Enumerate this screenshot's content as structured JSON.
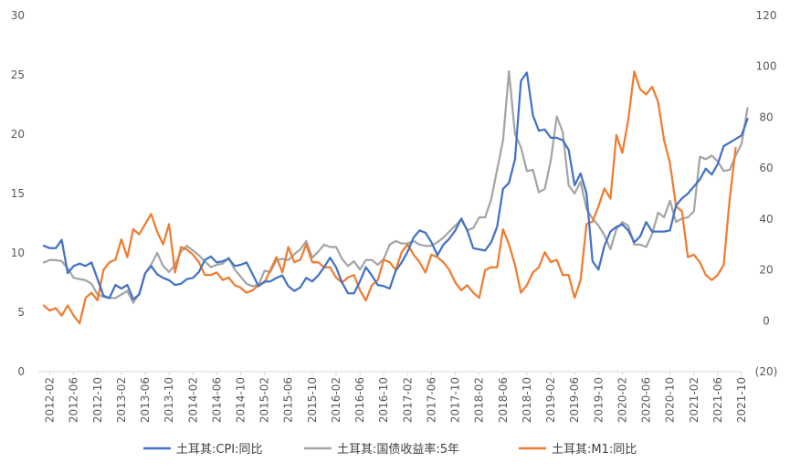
{
  "chart_data": {
    "type": "line",
    "title": "",
    "left_axis": {
      "min": 0,
      "max": 30,
      "step": 5,
      "ticks": [
        "0",
        "5",
        "10",
        "15",
        "20",
        "25",
        "30"
      ]
    },
    "right_axis": {
      "min": -20,
      "max": 120,
      "step": 20,
      "ticks": [
        "(20)",
        "0",
        "20",
        "40",
        "60",
        "80",
        "100",
        "120"
      ],
      "negative_color": "#c00000"
    },
    "x_labels": [
      "2012-02",
      "2012-06",
      "2012-10",
      "2013-02",
      "2013-06",
      "2013-10",
      "2014-02",
      "2014-06",
      "2014-10",
      "2015-02",
      "2015-06",
      "2015-10",
      "2016-02",
      "2016-06",
      "2016-10",
      "2017-02",
      "2017-06",
      "2017-10",
      "2018-02",
      "2018-06",
      "2018-10",
      "2019-02",
      "2019-06",
      "2019-10",
      "2020-02",
      "2020-06",
      "2020-10",
      "2021-02",
      "2021-06",
      "2021-10"
    ],
    "x_start": "2012-01",
    "legend": {
      "position": "bottom"
    },
    "grid": false,
    "series": [
      {
        "name": "土耳其:CPI:同比",
        "axis": "left",
        "color": "#4472c4",
        "values": [
          10.6,
          10.4,
          10.4,
          11.1,
          8.3,
          8.9,
          9.1,
          8.9,
          9.2,
          7.8,
          6.4,
          6.2,
          7.3,
          7.0,
          7.3,
          6.1,
          6.5,
          8.3,
          8.9,
          8.2,
          7.9,
          7.7,
          7.3,
          7.4,
          7.8,
          7.9,
          8.4,
          9.4,
          9.7,
          9.2,
          9.3,
          9.5,
          8.9,
          9.0,
          9.2,
          8.2,
          7.2,
          7.6,
          7.6,
          7.9,
          8.1,
          7.2,
          6.8,
          7.1,
          7.9,
          7.6,
          8.1,
          8.8,
          9.6,
          8.8,
          7.5,
          6.6,
          6.6,
          7.6,
          8.8,
          8.1,
          7.3,
          7.2,
          7.0,
          8.5,
          9.2,
          10.1,
          11.3,
          11.9,
          11.7,
          10.9,
          9.8,
          10.7,
          11.2,
          11.9,
          12.9,
          11.9,
          10.4,
          10.3,
          10.2,
          10.9,
          12.2,
          15.4,
          15.9,
          17.9,
          24.5,
          25.2,
          21.6,
          20.3,
          20.4,
          19.7,
          19.7,
          19.5,
          18.7,
          15.7,
          16.7,
          15.0,
          9.3,
          8.6,
          10.6,
          11.8,
          12.2,
          12.4,
          11.9,
          10.9,
          11.4,
          12.6,
          11.8,
          11.8,
          11.8,
          11.9,
          14.0,
          14.6,
          15.0,
          15.6,
          16.2,
          17.1,
          16.6,
          17.5,
          19.0,
          19.3,
          19.6,
          19.9,
          21.3
        ]
      },
      {
        "name": "土耳其:国债收益率:5年",
        "axis": "left",
        "color": "#a5a5a5",
        "values": [
          9.2,
          9.4,
          9.4,
          9.3,
          8.7,
          7.9,
          7.8,
          7.7,
          7.4,
          6.5,
          6.3,
          6.2,
          6.2,
          6.5,
          6.8,
          5.8,
          6.6,
          8.3,
          9.0,
          10.0,
          8.9,
          8.4,
          9.0,
          10.1,
          10.6,
          10.2,
          9.8,
          9.3,
          8.8,
          9.0,
          9.1,
          9.6,
          8.6,
          8.0,
          7.4,
          7.2,
          7.3,
          8.5,
          8.4,
          9.4,
          9.5,
          9.4,
          9.9,
          10.3,
          11.0,
          9.6,
          10.1,
          10.7,
          10.5,
          10.5,
          9.5,
          8.9,
          9.3,
          8.6,
          9.4,
          9.4,
          9.0,
          9.5,
          10.7,
          11.0,
          10.8,
          10.8,
          11.0,
          10.7,
          10.6,
          10.6,
          10.9,
          11.3,
          11.8,
          12.3,
          12.8,
          11.9,
          12.1,
          13.0,
          13.0,
          14.5,
          17.0,
          19.5,
          25.3,
          20.0,
          18.9,
          16.9,
          17.0,
          15.1,
          15.4,
          17.8,
          21.5,
          20.2,
          15.7,
          15.0,
          16.0,
          13.7,
          12.9,
          12.3,
          11.5,
          10.3,
          12.0,
          12.6,
          12.3,
          10.7,
          10.7,
          10.5,
          11.6,
          13.4,
          13.0,
          14.4,
          12.6,
          12.9,
          13.0,
          13.5,
          18.1,
          17.9,
          18.2,
          17.7,
          16.9,
          17.0,
          18.2,
          19.2,
          22.2
        ]
      },
      {
        "name": "土耳其:M1:同比",
        "axis": "right",
        "color": "#ed7d31",
        "values": [
          6,
          4,
          5,
          2,
          6,
          2,
          -1,
          9,
          11,
          8,
          20,
          23,
          24,
          32,
          25,
          36,
          34,
          38,
          42,
          35,
          30,
          38,
          19,
          29,
          28,
          26,
          23,
          18,
          18,
          19,
          16,
          17,
          14,
          13,
          11,
          12,
          14,
          15,
          20,
          25,
          19,
          29,
          23,
          24,
          30,
          23,
          23,
          21,
          21,
          17,
          15,
          17,
          18,
          12,
          8,
          14,
          16,
          24,
          23,
          20,
          27,
          30,
          26,
          23,
          19,
          26,
          25,
          23,
          20,
          15,
          12,
          14,
          11,
          9,
          20,
          21,
          21,
          36,
          30,
          22,
          11,
          14,
          19,
          21,
          27,
          23,
          24,
          18,
          18,
          9,
          16,
          38,
          39,
          45,
          52,
          48,
          73,
          66,
          79,
          98,
          91,
          89,
          92,
          86,
          71,
          62,
          45,
          43,
          25,
          26,
          23,
          18,
          16,
          18,
          22,
          48,
          68
        ]
      }
    ]
  }
}
